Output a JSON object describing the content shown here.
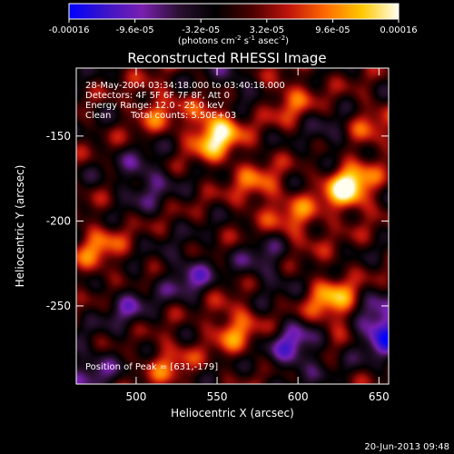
{
  "chart_data": {
    "type": "heatmap",
    "title": "Reconstructed RHESSI Image",
    "xlabel": "Heliocentric X (arcsec)",
    "ylabel": "Heliocentric Y (arcsec)",
    "xlim": [
      463,
      656
    ],
    "ylim": [
      -296,
      -110
    ],
    "x_ticks": [
      500,
      550,
      600,
      650
    ],
    "y_ticks": [
      -150,
      -200,
      -250
    ],
    "colorbar": {
      "ticks": [
        "-0.00016",
        "-9.6e-05",
        "-3.2e-05",
        "3.2e-05",
        "9.6e-05",
        "0.00016"
      ],
      "unit_main": "(photons cm",
      "unit_sup1": "-2",
      "unit_mid": " s",
      "unit_sup2": "-1",
      "unit_end": " asec",
      "unit_sup3": "-2",
      "unit_close": ")",
      "range": [
        -0.00016,
        0.00016
      ],
      "stops": [
        "#0000ff",
        "#3b14c8",
        "#7a1fb0",
        "#2a1030",
        "#000000",
        "#4a0000",
        "#c0140c",
        "#ff6a00",
        "#ffc800",
        "#fffff0"
      ]
    },
    "annotations": {
      "time": "28-May-2004 03:34:18.000 to 03:40:18.000",
      "detectors": "Detectors: 4F 5F 6F 7F 8F, Att 0",
      "energy": "Energy Range: 12.0 - 25.0 keV",
      "method": "Clean",
      "counts": "Total counts: 5.50E+03",
      "peak": "Position of Peak = [631,-179]"
    },
    "peaks": [
      {
        "x": 631,
        "y": -179,
        "value": 1.0
      },
      {
        "x": 549,
        "y": -148,
        "value": 0.95
      },
      {
        "x": 595,
        "y": -128,
        "value": 0.4
      },
      {
        "x": 622,
        "y": -248,
        "value": 0.7
      },
      {
        "x": 560,
        "y": -262,
        "value": 0.55
      },
      {
        "x": 600,
        "y": -200,
        "value": 0.45
      },
      {
        "x": 477,
        "y": -217,
        "value": 0.5
      },
      {
        "x": 512,
        "y": -133,
        "value": 0.4
      },
      {
        "x": 575,
        "y": -180,
        "value": 0.45
      },
      {
        "x": 520,
        "y": -283,
        "value": 0.4
      },
      {
        "x": 645,
        "y": -145,
        "value": 0.35
      },
      {
        "x": 533,
        "y": -232,
        "value": -0.45
      },
      {
        "x": 580,
        "y": -225,
        "value": -0.35
      },
      {
        "x": 652,
        "y": -263,
        "value": -0.9
      },
      {
        "x": 505,
        "y": -175,
        "value": -0.45
      },
      {
        "x": 620,
        "y": -155,
        "value": -0.35
      },
      {
        "x": 598,
        "y": -275,
        "value": -0.6
      },
      {
        "x": 472,
        "y": -288,
        "value": -0.4
      },
      {
        "x": 560,
        "y": -120,
        "value": -0.3
      },
      {
        "x": 495,
        "y": -250,
        "value": -0.35
      }
    ]
  },
  "footer": {
    "date": "20-Jun-2013 09:48"
  }
}
